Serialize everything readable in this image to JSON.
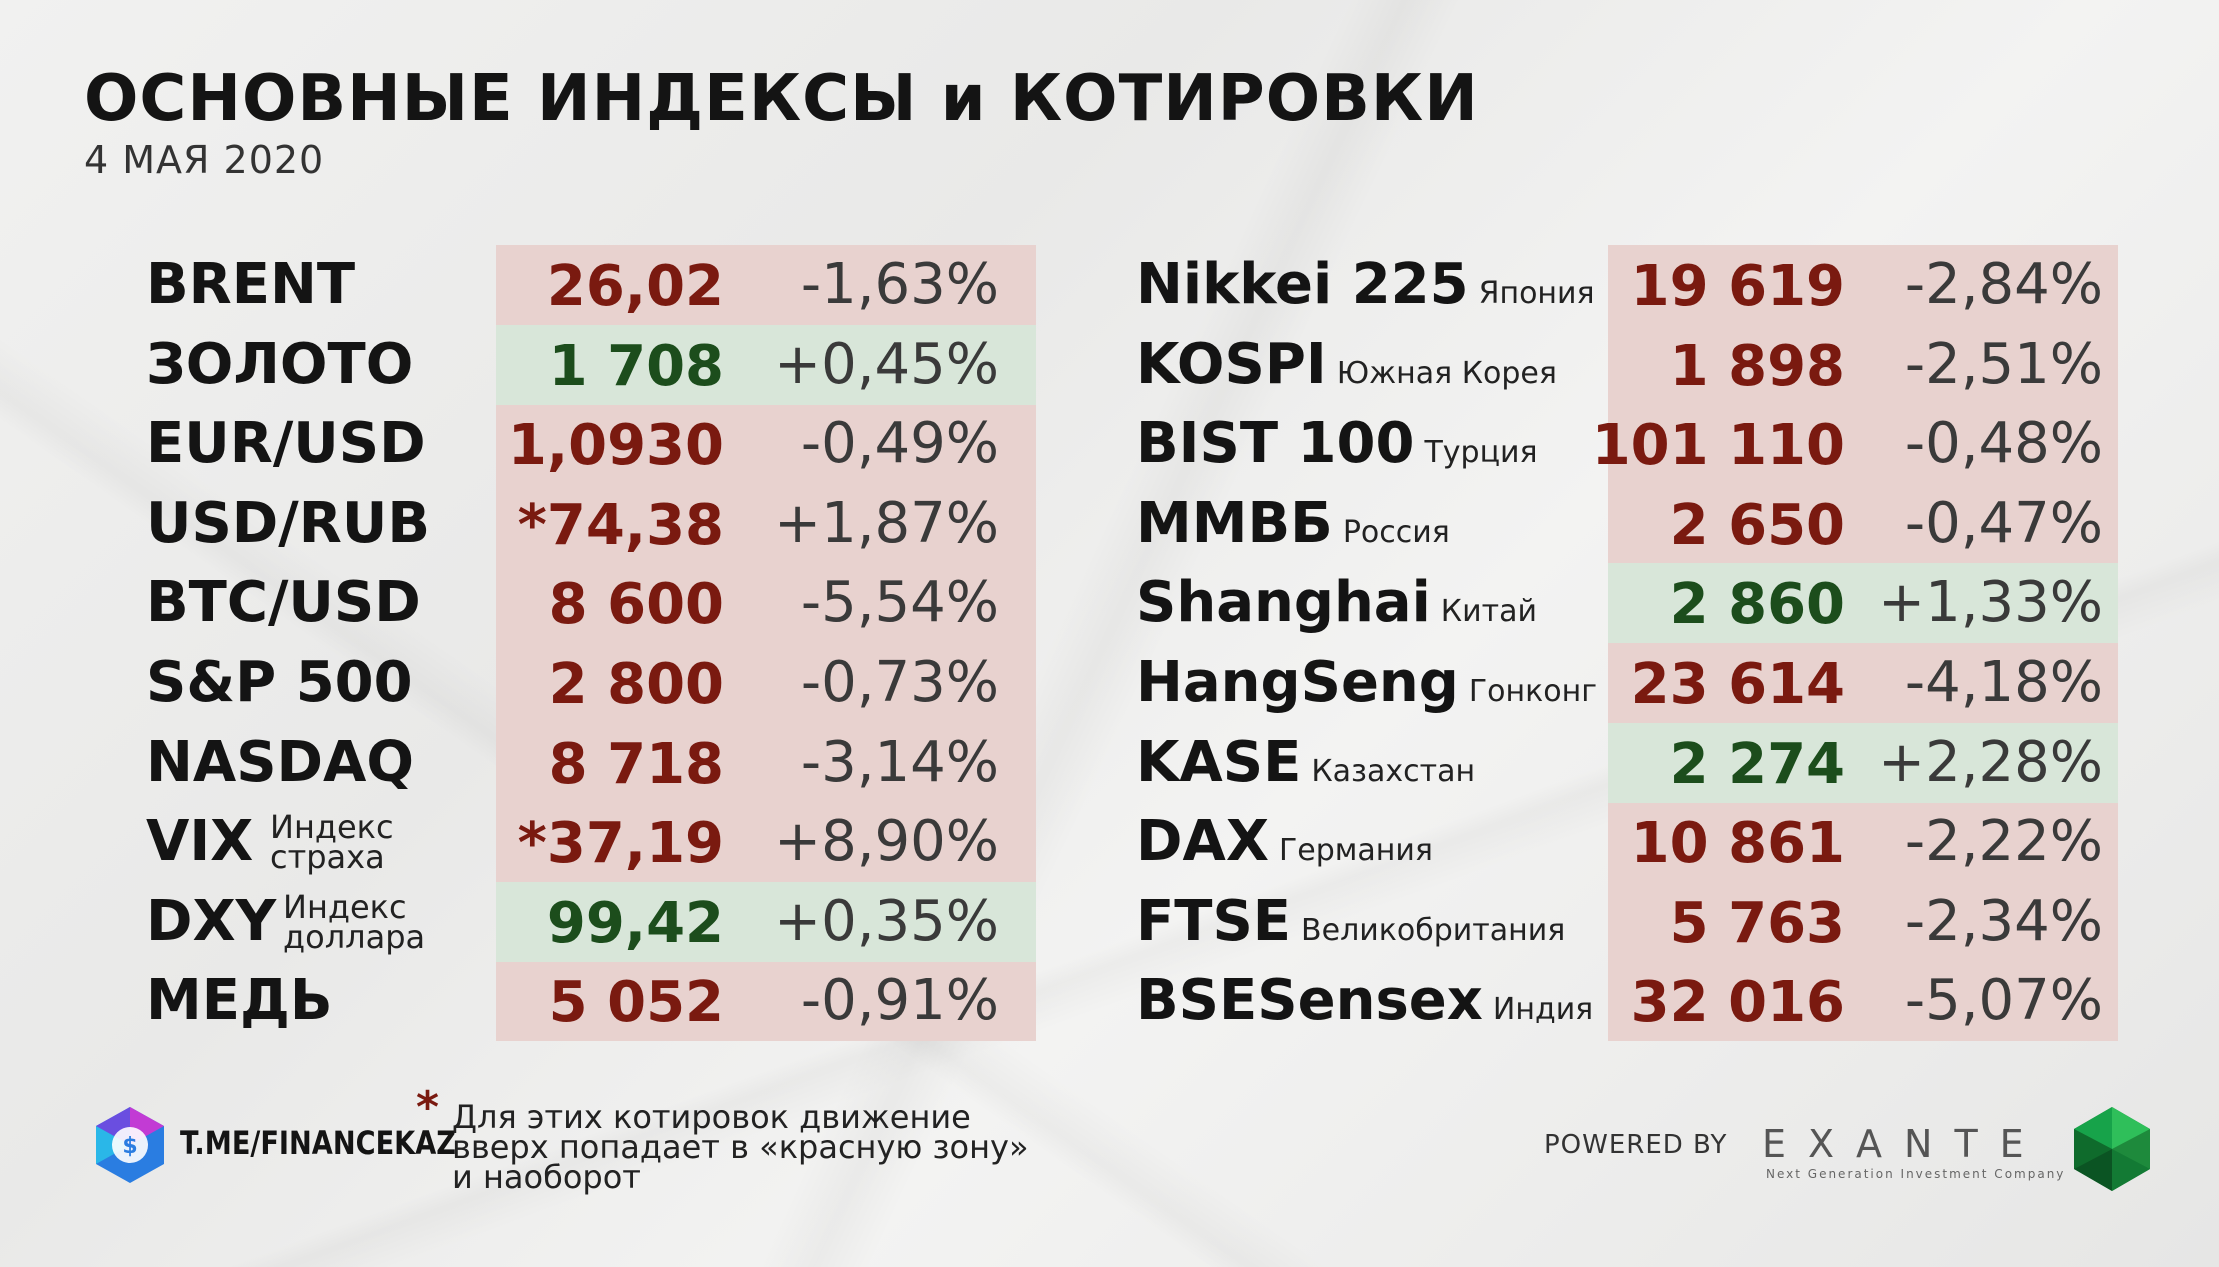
{
  "title": "ОСНОВНЫЕ ИНДЕКСЫ и КОТИРОВКИ",
  "date": "4 МАЯ 2020",
  "left_rows": [
    {
      "name": "BRENT",
      "value": "26,02",
      "change": "-1,63%",
      "color": "red"
    },
    {
      "name": "ЗОЛОТО",
      "value": "1 708",
      "change": "+0,45%",
      "color": "green"
    },
    {
      "name": "EUR/USD",
      "value": "1,0930",
      "change": "-0,49%",
      "color": "red"
    },
    {
      "name": "USD/RUB",
      "value": "*74,38",
      "change": "+1,87%",
      "color": "red"
    },
    {
      "name": "BTC/USD",
      "value": "8 600",
      "change": "-5,54%",
      "color": "red"
    },
    {
      "name": "S&P 500",
      "value": "2 800",
      "change": "-0,73%",
      "color": "red"
    },
    {
      "name": "NASDAQ",
      "value": "8 718",
      "change": "-3,14%",
      "color": "red"
    },
    {
      "name": "VIX",
      "sub1": "Индекс",
      "sub2": "страха",
      "value": "*37,19",
      "change": "+8,90%",
      "color": "red"
    },
    {
      "name": "DXY",
      "sub1": "Индекс",
      "sub2": "доллара",
      "value": "99,42",
      "change": "+0,35%",
      "color": "green"
    },
    {
      "name": "МЕДЬ",
      "value": "5 052",
      "change": "-0,91%",
      "color": "red"
    }
  ],
  "right_rows": [
    {
      "name": "Nikkei 225",
      "sub": "Япония",
      "value": "19 619",
      "change": "-2,84%",
      "color": "red"
    },
    {
      "name": "KOSPI",
      "sub": "Южная Корея",
      "value": "1 898",
      "change": "-2,51%",
      "color": "red"
    },
    {
      "name": "BIST 100",
      "sub": "Турция",
      "value": "101 110",
      "change": "-0,48%",
      "color": "red"
    },
    {
      "name": "ММВБ",
      "sub": "Россия",
      "value": "2 650",
      "change": "-0,47%",
      "color": "red"
    },
    {
      "name": "Shanghai",
      "sub": "Китай",
      "value": "2 860",
      "change": "+1,33%",
      "color": "green"
    },
    {
      "name": "HangSeng",
      "sub": "Гонконг",
      "value": "23 614",
      "change": "-4,18%",
      "color": "red"
    },
    {
      "name": "KASE",
      "sub": "Казахстан",
      "value": "2 274",
      "change": "+2,28%",
      "color": "green"
    },
    {
      "name": "DAX",
      "sub": "Германия",
      "value": "10 861",
      "change": "-2,22%",
      "color": "red"
    },
    {
      "name": "FTSE",
      "sub": "Великобритания",
      "value": "5 763",
      "change": "-2,34%",
      "color": "red"
    },
    {
      "name": "BSESensex",
      "sub": "Индия",
      "value": "32 016",
      "change": "-5,07%",
      "color": "red"
    }
  ],
  "footer": {
    "channel": "T.ME/FINANCEKAZ",
    "note_star": "*",
    "note_line1": "Для этих котировок движение",
    "note_line2": "вверх попадает в «красную зону»",
    "note_line3": "и наоборот",
    "powered_by": "POWERED BY",
    "brand": "EXANTE",
    "brand_tagline": "Next Generation Investment Company"
  },
  "colors": {
    "red_text": "#7a1a10",
    "green_text": "#1c4d1c",
    "red_zone": "#e8d2cf",
    "green_zone": "#d8e6d9"
  }
}
